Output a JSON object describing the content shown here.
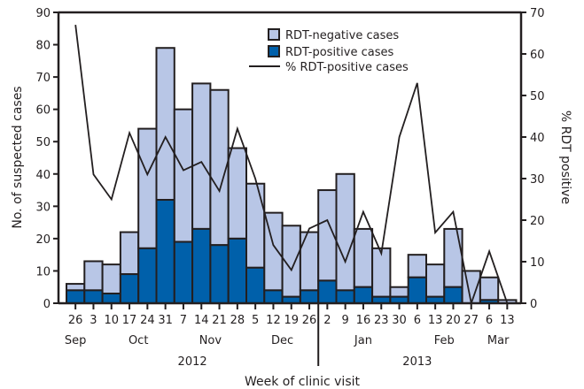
{
  "chart_data": {
    "type": "bar",
    "subtype": "stacked-bar-with-line",
    "title": "",
    "xlabel": "Week of clinic visit",
    "ylabel": "No. of suspected cases",
    "y2label": "% RDT positive",
    "ylim": [
      0,
      90
    ],
    "y2lim": [
      0,
      70
    ],
    "yticks": [
      0,
      10,
      20,
      30,
      40,
      50,
      60,
      70,
      80,
      90
    ],
    "y2ticks": [
      0,
      10,
      20,
      30,
      40,
      50,
      60,
      70
    ],
    "grid": false,
    "legend_position": "top-right",
    "categories": [
      "26",
      "3",
      "10",
      "17",
      "24",
      "31",
      "7",
      "14",
      "21",
      "28",
      "5",
      "12",
      "19",
      "26",
      "2",
      "9",
      "16",
      "23",
      "30",
      "6",
      "13",
      "20",
      "27",
      "6",
      "13"
    ],
    "months": [
      {
        "label": "Sep",
        "index": 0
      },
      {
        "label": "Oct",
        "index": 3.5
      },
      {
        "label": "Nov",
        "index": 7.5
      },
      {
        "label": "Dec",
        "index": 11.5
      },
      {
        "label": "Jan",
        "index": 16
      },
      {
        "label": "Feb",
        "index": 20.5
      },
      {
        "label": "Mar",
        "index": 23.5
      }
    ],
    "years": [
      {
        "label": "2012",
        "index": 6.5
      },
      {
        "label": "2013",
        "index": 19
      }
    ],
    "year_divider_after_index": 13,
    "series": [
      {
        "name": "RDT-positive cases",
        "kind": "bar",
        "axis": "left",
        "color": "#0060aa",
        "values": [
          4,
          4,
          3,
          9,
          17,
          32,
          19,
          23,
          18,
          20,
          11,
          4,
          2,
          4,
          7,
          4,
          5,
          2,
          2,
          8,
          2,
          5,
          0,
          1,
          0
        ]
      },
      {
        "name": "RDT-negative cases",
        "kind": "bar",
        "axis": "left",
        "color": "#b8c6e6",
        "values": [
          2,
          9,
          9,
          13,
          37,
          47,
          41,
          45,
          48,
          28,
          26,
          24,
          22,
          18,
          28,
          36,
          18,
          15,
          3,
          7,
          10,
          18,
          10,
          7,
          1
        ]
      },
      {
        "name": "% RDT-positive cases",
        "kind": "line",
        "axis": "right",
        "color": "#231f20",
        "values": [
          67,
          31,
          25,
          41,
          31,
          40,
          32,
          34,
          27,
          42,
          30,
          14,
          8,
          18,
          20,
          10,
          22,
          12,
          40,
          53,
          17,
          22,
          0,
          12.5,
          0
        ]
      }
    ],
    "totals": [
      6,
      13,
      12,
      22,
      54,
      79,
      60,
      68,
      66,
      48,
      37,
      28,
      24,
      22,
      35,
      40,
      23,
      17,
      5,
      15,
      12,
      23,
      10,
      8,
      1
    ]
  },
  "legend": {
    "negative": "RDT-negative cases",
    "positive": "RDT-positive cases",
    "line": "% RDT-positive cases"
  }
}
